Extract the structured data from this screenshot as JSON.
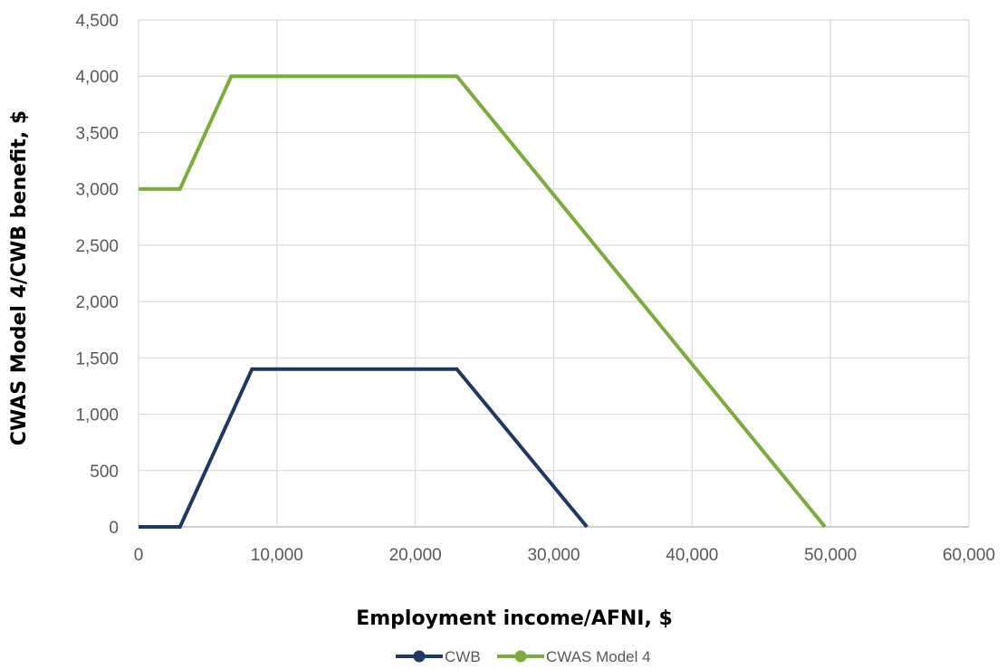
{
  "chart_data": {
    "type": "line",
    "title": "",
    "xlabel": "Employment income/AFNI, $",
    "ylabel": "CWAS Model 4/CWB benefit, $",
    "xlim": [
      0,
      60000
    ],
    "ylim": [
      0,
      4500
    ],
    "x_ticks": [
      0,
      10000,
      20000,
      30000,
      40000,
      50000,
      60000
    ],
    "x_tick_labels": [
      "0",
      "10,000",
      "20,000",
      "30,000",
      "40,000",
      "50,000",
      "60,000"
    ],
    "y_ticks": [
      0,
      500,
      1000,
      1500,
      2000,
      2500,
      3000,
      3500,
      4000,
      4500
    ],
    "y_tick_labels": [
      "0",
      "500",
      "1,000",
      "1,500",
      "2,000",
      "2,500",
      "3,000",
      "3,500",
      "4,000",
      "4,500"
    ],
    "grid": true,
    "legend_position": "bottom",
    "series": [
      {
        "name": "CWB",
        "color": "#203864",
        "points": [
          [
            0,
            0
          ],
          [
            3000,
            0
          ],
          [
            8200,
            1400
          ],
          [
            23000,
            1400
          ],
          [
            32400,
            0
          ]
        ]
      },
      {
        "name": "CWAS Model 4",
        "color": "#7cac3c",
        "points": [
          [
            0,
            3000
          ],
          [
            3000,
            3000
          ],
          [
            6700,
            4000
          ],
          [
            23000,
            4000
          ],
          [
            49600,
            0
          ]
        ]
      }
    ]
  }
}
